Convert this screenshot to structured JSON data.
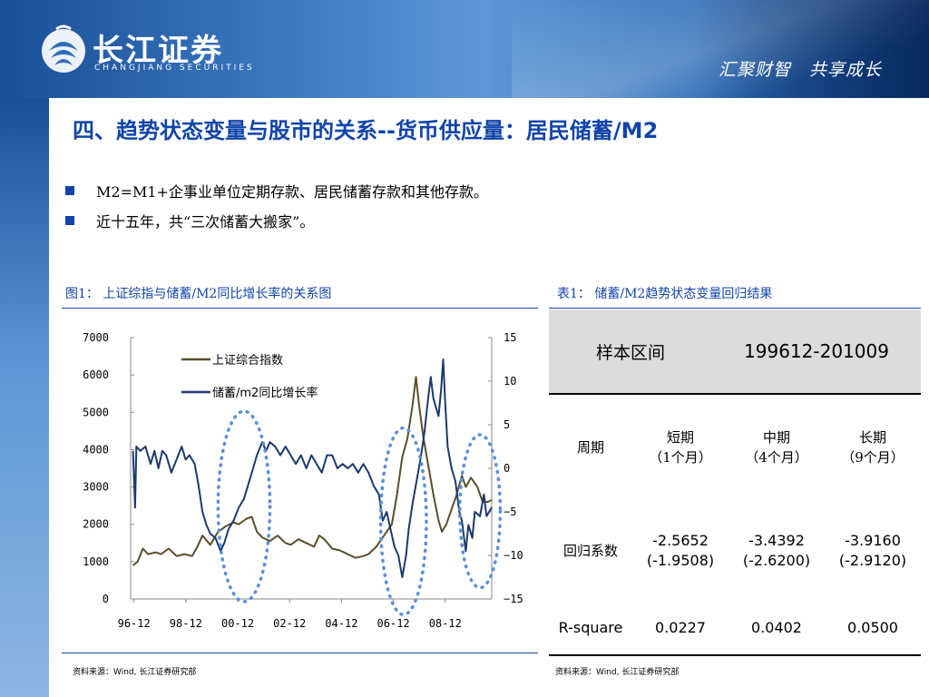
{
  "header": {
    "logo_cn": "长江证券",
    "logo_en": "CHANGJIANG SECURITIES",
    "slogan": "汇聚财智　共享成长"
  },
  "title": "四、趋势状态变量与股市的关系--货币供应量：居民储蓄/M2",
  "bullets": [
    "M2=M1+企事业单位定期存款、居民储蓄存款和其他存款。",
    "近十五年，共“三次储蓄大搬家”。"
  ],
  "figure": {
    "caption": "图1： 上证综指与储蓄/M2同比增长率的关系图",
    "source": "资料来源：Wind, 长江证券研究部"
  },
  "table": {
    "caption": "表1： 储蓄/M2趋势状态变量回归结果",
    "source": "资料来源：Wind, 长江证券研究部",
    "header_label": "样本区间",
    "header_value": "199612-201009",
    "period_label": "周期",
    "periods": [
      {
        "name": "短期",
        "detail": "（1个月）"
      },
      {
        "name": "中期",
        "detail": "（4个月）"
      },
      {
        "name": "长期",
        "detail": "（9个月）"
      }
    ],
    "coef_label": "回归系数",
    "coefs": [
      {
        "value": "-2.5652",
        "t": "(-1.9508)"
      },
      {
        "value": "-3.4392",
        "t": "(-2.6200)"
      },
      {
        "value": "-3.9160",
        "t": "(-2.9120)"
      }
    ],
    "rsq_label": "R-square",
    "rsq": [
      "0.0227",
      "0.0402",
      "0.0500"
    ]
  },
  "colors": {
    "title_blue": "#1144aa",
    "series_index": "#5a4e2a",
    "series_ratio": "#1b3a6b",
    "circle": "#5b8fd6"
  },
  "chart_data": {
    "type": "line",
    "title": "",
    "xlabel": "",
    "ylabel_left": "",
    "ylabel_right": "",
    "x_ticks": [
      "96-12",
      "98-12",
      "00-12",
      "02-12",
      "04-12",
      "06-12",
      "08-12"
    ],
    "x_range": [
      1996.83,
      2010.75
    ],
    "y_left_ticks": [
      "0",
      "1000",
      "2000",
      "3000",
      "4000",
      "5000",
      "6000",
      "7000"
    ],
    "y_left_range": [
      0,
      7000
    ],
    "y_right_ticks": [
      "−15",
      "−10",
      "−5",
      "0",
      "5",
      "10",
      "15"
    ],
    "y_right_range": [
      -15,
      15
    ],
    "legend_position": "top-left",
    "grid": false,
    "series": [
      {
        "name": "上证综合指数",
        "axis": "left",
        "points": [
          [
            1996.92,
            900
          ],
          [
            1997.1,
            1000
          ],
          [
            1997.3,
            1350
          ],
          [
            1997.5,
            1200
          ],
          [
            1997.8,
            1250
          ],
          [
            1998.0,
            1200
          ],
          [
            1998.3,
            1350
          ],
          [
            1998.6,
            1150
          ],
          [
            1998.9,
            1200
          ],
          [
            1999.2,
            1150
          ],
          [
            1999.4,
            1400
          ],
          [
            1999.6,
            1700
          ],
          [
            1999.9,
            1450
          ],
          [
            2000.2,
            1800
          ],
          [
            2000.5,
            1950
          ],
          [
            2000.8,
            2050
          ],
          [
            2001.0,
            2000
          ],
          [
            2001.3,
            2150
          ],
          [
            2001.5,
            2200
          ],
          [
            2001.7,
            1800
          ],
          [
            2001.9,
            1650
          ],
          [
            2002.2,
            1550
          ],
          [
            2002.5,
            1700
          ],
          [
            2002.8,
            1500
          ],
          [
            2003.0,
            1450
          ],
          [
            2003.3,
            1600
          ],
          [
            2003.6,
            1500
          ],
          [
            2003.9,
            1400
          ],
          [
            2004.1,
            1700
          ],
          [
            2004.3,
            1600
          ],
          [
            2004.6,
            1350
          ],
          [
            2004.9,
            1300
          ],
          [
            2005.2,
            1200
          ],
          [
            2005.5,
            1100
          ],
          [
            2005.8,
            1150
          ],
          [
            2006.0,
            1200
          ],
          [
            2006.3,
            1400
          ],
          [
            2006.6,
            1700
          ],
          [
            2006.9,
            2000
          ],
          [
            2007.1,
            2800
          ],
          [
            2007.3,
            3800
          ],
          [
            2007.5,
            4300
          ],
          [
            2007.7,
            5200
          ],
          [
            2007.83,
            5950
          ],
          [
            2007.95,
            5200
          ],
          [
            2008.1,
            4400
          ],
          [
            2008.3,
            3600
          ],
          [
            2008.5,
            2800
          ],
          [
            2008.7,
            2100
          ],
          [
            2008.83,
            1800
          ],
          [
            2009.0,
            2000
          ],
          [
            2009.2,
            2400
          ],
          [
            2009.4,
            2800
          ],
          [
            2009.6,
            3300
          ],
          [
            2009.75,
            3000
          ],
          [
            2009.95,
            3250
          ],
          [
            2010.2,
            3000
          ],
          [
            2010.4,
            2600
          ],
          [
            2010.6,
            2600
          ],
          [
            2010.75,
            2650
          ]
        ]
      },
      {
        "name": "储蓄/m2同比增长率",
        "axis": "right",
        "points": [
          [
            1996.92,
            2.0
          ],
          [
            1997.0,
            -4.5
          ],
          [
            1997.05,
            2.5
          ],
          [
            1997.2,
            2.0
          ],
          [
            1997.4,
            2.5
          ],
          [
            1997.6,
            0.5
          ],
          [
            1997.75,
            2.0
          ],
          [
            1997.9,
            0.0
          ],
          [
            1998.05,
            2.0
          ],
          [
            1998.2,
            1.5
          ],
          [
            1998.4,
            -0.5
          ],
          [
            1998.6,
            1.0
          ],
          [
            1998.8,
            2.5
          ],
          [
            1998.95,
            1.0
          ],
          [
            1999.1,
            1.5
          ],
          [
            1999.3,
            0.5
          ],
          [
            1999.45,
            -2.0
          ],
          [
            1999.6,
            -5.0
          ],
          [
            1999.75,
            -6.5
          ],
          [
            1999.9,
            -7.5
          ],
          [
            2000.1,
            -8.0
          ],
          [
            2000.3,
            -9.5
          ],
          [
            2000.45,
            -8.5
          ],
          [
            2000.6,
            -7.0
          ],
          [
            2000.8,
            -6.0
          ],
          [
            2001.0,
            -4.5
          ],
          [
            2001.2,
            -3.5
          ],
          [
            2001.4,
            -1.5
          ],
          [
            2001.55,
            0.0
          ],
          [
            2001.7,
            1.5
          ],
          [
            2001.9,
            3.0
          ],
          [
            2002.05,
            2.0
          ],
          [
            2002.2,
            3.0
          ],
          [
            2002.4,
            2.5
          ],
          [
            2002.6,
            1.5
          ],
          [
            2002.8,
            2.5
          ],
          [
            2003.0,
            1.5
          ],
          [
            2003.2,
            0.5
          ],
          [
            2003.4,
            1.5
          ],
          [
            2003.6,
            0.0
          ],
          [
            2003.8,
            1.5
          ],
          [
            2004.0,
            0.5
          ],
          [
            2004.2,
            -0.5
          ],
          [
            2004.4,
            1.5
          ],
          [
            2004.6,
            1.5
          ],
          [
            2004.8,
            0.0
          ],
          [
            2005.0,
            0.5
          ],
          [
            2005.2,
            0.0
          ],
          [
            2005.4,
            0.5
          ],
          [
            2005.6,
            -0.5
          ],
          [
            2005.8,
            0.5
          ],
          [
            2006.0,
            -0.5
          ],
          [
            2006.2,
            -2.0
          ],
          [
            2006.4,
            -3.0
          ],
          [
            2006.55,
            -6.0
          ],
          [
            2006.7,
            -5.0
          ],
          [
            2006.85,
            -7.0
          ],
          [
            2007.0,
            -9.0
          ],
          [
            2007.15,
            -10.0
          ],
          [
            2007.3,
            -12.5
          ],
          [
            2007.45,
            -10.0
          ],
          [
            2007.55,
            -7.0
          ],
          [
            2007.7,
            -4.0
          ],
          [
            2007.85,
            -1.5
          ],
          [
            2008.0,
            1.0
          ],
          [
            2008.15,
            4.0
          ],
          [
            2008.3,
            8.0
          ],
          [
            2008.4,
            10.5
          ],
          [
            2008.5,
            8.0
          ],
          [
            2008.6,
            7.0
          ],
          [
            2008.7,
            6.0
          ],
          [
            2008.8,
            9.0
          ],
          [
            2008.88,
            12.5
          ],
          [
            2008.95,
            8.0
          ],
          [
            2009.05,
            2.5
          ],
          [
            2009.2,
            0.0
          ],
          [
            2009.35,
            -1.5
          ],
          [
            2009.5,
            -5.0
          ],
          [
            2009.6,
            -6.0
          ],
          [
            2009.75,
            -9.5
          ],
          [
            2009.85,
            -6.5
          ],
          [
            2010.0,
            -8.0
          ],
          [
            2010.1,
            -5.0
          ],
          [
            2010.3,
            -5.5
          ],
          [
            2010.45,
            -3.0
          ],
          [
            2010.55,
            -5.5
          ],
          [
            2010.75,
            -4.5
          ]
        ]
      }
    ],
    "annotations": [
      {
        "shape": "dotted-ellipse",
        "cx": 2001.2,
        "cy_left": 2480,
        "rx_years": 1.0,
        "ry_left": 2550
      },
      {
        "shape": "dotted-ellipse",
        "cx": 2007.35,
        "cy_left": 2080,
        "rx_years": 0.88,
        "ry_left": 2500
      },
      {
        "shape": "dotted-ellipse",
        "cx": 2010.3,
        "cy_left": 2350,
        "rx_years": 0.78,
        "ry_left": 2050
      }
    ]
  }
}
